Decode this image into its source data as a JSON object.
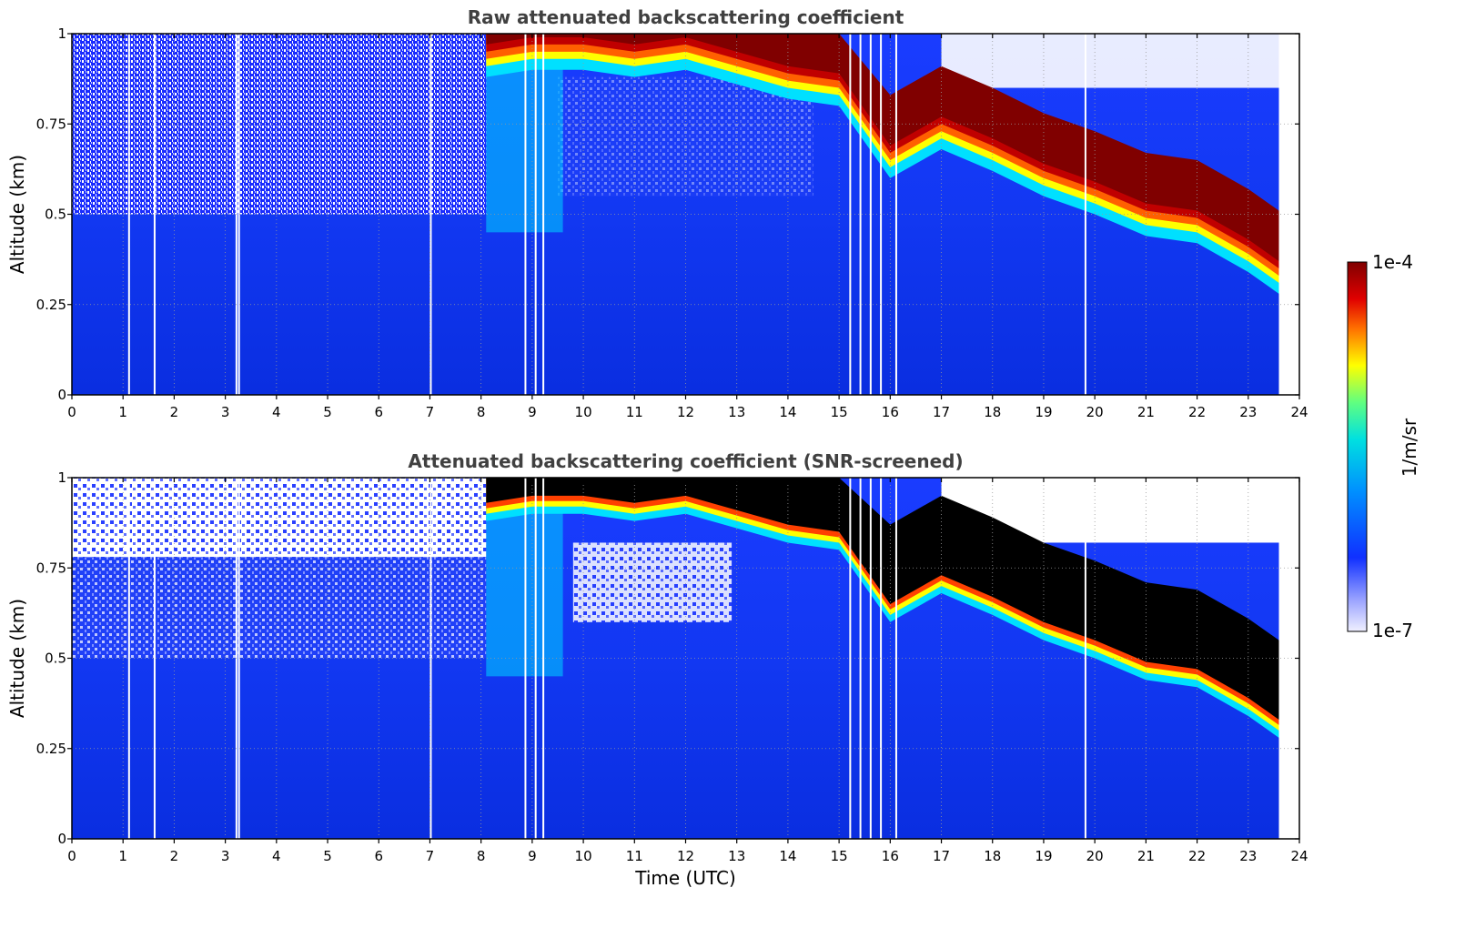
{
  "chart_data": [
    {
      "type": "heatmap",
      "title": "Raw attenuated backscattering coefficient",
      "xlabel": "",
      "ylabel": "Altitude (km)",
      "xlim": [
        0,
        24
      ],
      "ylim": [
        0,
        1
      ],
      "xticks": [
        "0",
        "1",
        "2",
        "3",
        "4",
        "5",
        "6",
        "7",
        "8",
        "9",
        "10",
        "11",
        "12",
        "13",
        "14",
        "15",
        "16",
        "17",
        "18",
        "19",
        "20",
        "21",
        "22",
        "23",
        "24"
      ],
      "yticks": [
        "0",
        "0.25",
        "0.5",
        "0.75",
        "1"
      ],
      "grid": true,
      "data_end_time": 23.6,
      "cloud_layer": {
        "time": [
          8.1,
          9,
          10,
          11,
          12,
          13,
          14,
          15,
          16,
          17,
          18,
          19,
          20,
          21,
          22,
          23,
          23.6
        ],
        "base_altitude": [
          0.88,
          0.9,
          0.9,
          0.88,
          0.9,
          0.86,
          0.82,
          0.8,
          0.6,
          0.68,
          0.62,
          0.55,
          0.5,
          0.44,
          0.42,
          0.34,
          0.28
        ]
      }
    },
    {
      "type": "heatmap",
      "title": "Attenuated backscattering coefficient (SNR-screened)",
      "xlabel": "Time (UTC)",
      "ylabel": "Altitude (km)",
      "xlim": [
        0,
        24
      ],
      "ylim": [
        0,
        1
      ],
      "xticks": [
        "0",
        "1",
        "2",
        "3",
        "4",
        "5",
        "6",
        "7",
        "8",
        "9",
        "10",
        "11",
        "12",
        "13",
        "14",
        "15",
        "16",
        "17",
        "18",
        "19",
        "20",
        "21",
        "22",
        "23",
        "24"
      ],
      "yticks": [
        "0",
        "0.25",
        "0.5",
        "0.75",
        "1"
      ],
      "grid": true,
      "data_end_time": 23.6,
      "cloud_layer": {
        "time": [
          8.1,
          9,
          10,
          11,
          12,
          13,
          14,
          15,
          16,
          17,
          18,
          19,
          20,
          21,
          22,
          23,
          23.6
        ],
        "base_altitude": [
          0.88,
          0.9,
          0.9,
          0.88,
          0.9,
          0.86,
          0.82,
          0.8,
          0.6,
          0.68,
          0.62,
          0.55,
          0.5,
          0.44,
          0.42,
          0.34,
          0.28
        ]
      }
    }
  ],
  "colorbar": {
    "label": "1/m/sr",
    "max_label": "1e-4",
    "min_label": "1e-7",
    "colormap": "jet-like",
    "colors": [
      "#f0f0ff",
      "#1030ff",
      "#00c0ff",
      "#40ffc0",
      "#ffff00",
      "#ff6000",
      "#c00000",
      "#800000"
    ]
  }
}
